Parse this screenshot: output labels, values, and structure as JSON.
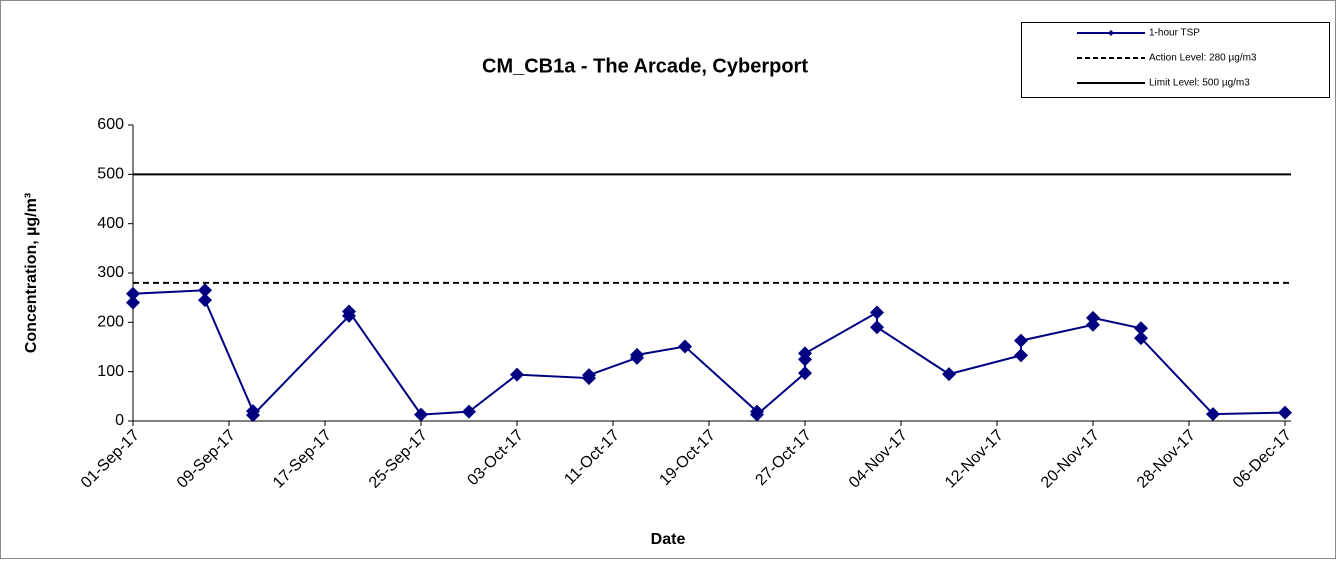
{
  "chart_data": {
    "type": "line",
    "title": "CM_CB1a - The Arcade, Cyberport",
    "x_label": "Date",
    "y_label": "Concentration, µg/m³",
    "xlim": [
      "01-Sep-17",
      "06-Dec-17"
    ],
    "xticks": [
      "01-Sep-17",
      "09-Sep-17",
      "17-Sep-17",
      "25-Sep-17",
      "03-Oct-17",
      "11-Oct-17",
      "19-Oct-17",
      "27-Oct-17",
      "04-Nov-17",
      "12-Nov-17",
      "20-Nov-17",
      "28-Nov-17",
      "06-Dec-17"
    ],
    "ylim": [
      0,
      600
    ],
    "yticks": [
      0,
      100,
      200,
      300,
      400,
      500,
      600
    ],
    "legend": "upper right",
    "series": [
      {
        "name": "1-hour TSP",
        "color": "#000080",
        "x": [
          "01-Sep-17",
          "01-Sep-17",
          "07-Sep-17",
          "07-Sep-17",
          "11-Sep-17",
          "11-Sep-17",
          "19-Sep-17",
          "19-Sep-17",
          "25-Sep-17",
          "29-Sep-17",
          "03-Oct-17",
          "09-Oct-17",
          "09-Oct-17",
          "13-Oct-17",
          "13-Oct-17",
          "17-Oct-17",
          "23-Oct-17",
          "23-Oct-17",
          "27-Oct-17",
          "27-Oct-17",
          "27-Oct-17",
          "02-Nov-17",
          "02-Nov-17",
          "08-Nov-17",
          "14-Nov-17",
          "14-Nov-17",
          "20-Nov-17",
          "20-Nov-17",
          "24-Nov-17",
          "24-Nov-17",
          "30-Nov-17",
          "06-Dec-17"
        ],
        "values": [
          240,
          258,
          265,
          245,
          20,
          12,
          213,
          222,
          13,
          19,
          94,
          87,
          93,
          128,
          134,
          151,
          19,
          13,
          97,
          125,
          137,
          220,
          190,
          95,
          133,
          163,
          195,
          209,
          188,
          168,
          14,
          17
        ]
      }
    ],
    "hlines": [
      {
        "name": "Action Level: 280 µg/m3",
        "value": 280,
        "style": "dashed",
        "color": "#000000"
      },
      {
        "name": "Limit Level: 500 µg/m3",
        "value": 500,
        "style": "solid",
        "color": "#000000"
      }
    ]
  }
}
